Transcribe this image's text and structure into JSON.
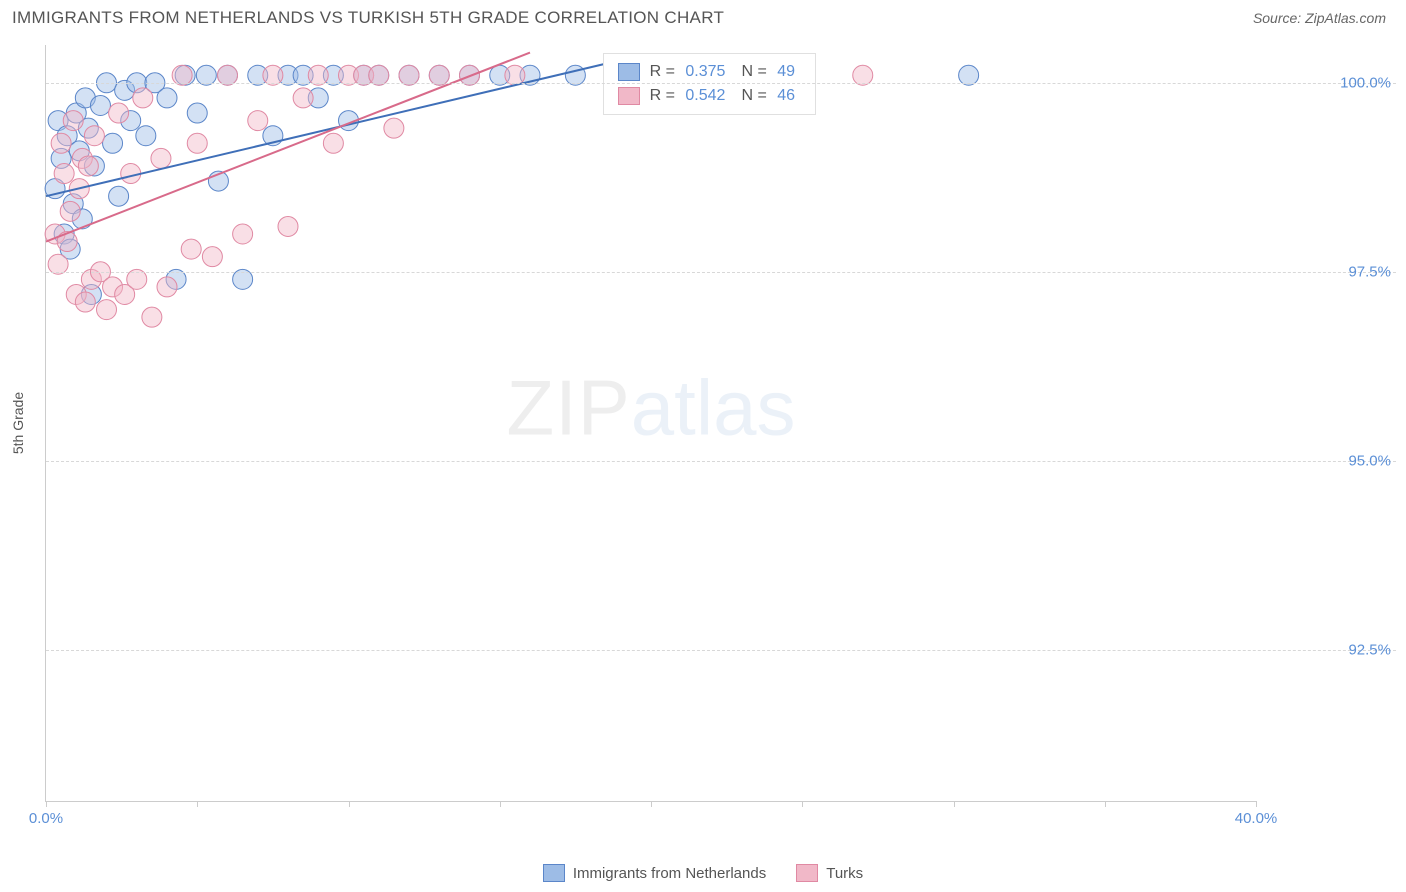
{
  "header": {
    "title": "IMMIGRANTS FROM NETHERLANDS VS TURKISH 5TH GRADE CORRELATION CHART",
    "source_label": "Source: ",
    "source_value": "ZipAtlas.com"
  },
  "chart": {
    "type": "scatter",
    "ylabel": "5th Grade",
    "xlim": [
      0.0,
      40.0
    ],
    "ylim": [
      90.5,
      100.5
    ],
    "xtick_positions": [
      0,
      5,
      10,
      15,
      20,
      25,
      30,
      35,
      40
    ],
    "xtick_labels": {
      "0": "0.0%",
      "40": "40.0%"
    },
    "ytick_positions": [
      92.5,
      95.0,
      97.5,
      100.0
    ],
    "ytick_labels": [
      "92.5%",
      "95.0%",
      "97.5%",
      "100.0%"
    ],
    "background_color": "#ffffff",
    "grid_color": "#d8d8d8",
    "axis_color": "#cccccc",
    "tick_label_color": "#5b8fd6",
    "label_color": "#555555",
    "label_fontsize": 14,
    "tick_fontsize": 15,
    "marker_radius": 10,
    "marker_opacity": 0.45,
    "line_width": 2,
    "series": [
      {
        "name": "Immigrants from Netherlands",
        "fill_color": "#9dbce6",
        "stroke_color": "#5b86c9",
        "line_color": "#3f6fb8",
        "r_label": "R = ",
        "r_value": "0.375",
        "n_label": "N = ",
        "n_value": "49",
        "trend": {
          "x1": 0.0,
          "y1": 98.5,
          "x2": 19.0,
          "y2": 100.3
        },
        "points": [
          {
            "x": 0.3,
            "y": 98.6
          },
          {
            "x": 0.4,
            "y": 99.5
          },
          {
            "x": 0.5,
            "y": 99.0
          },
          {
            "x": 0.6,
            "y": 98.0
          },
          {
            "x": 0.7,
            "y": 99.3
          },
          {
            "x": 0.8,
            "y": 97.8
          },
          {
            "x": 0.9,
            "y": 98.4
          },
          {
            "x": 1.0,
            "y": 99.6
          },
          {
            "x": 1.1,
            "y": 99.1
          },
          {
            "x": 1.2,
            "y": 98.2
          },
          {
            "x": 1.3,
            "y": 99.8
          },
          {
            "x": 1.4,
            "y": 99.4
          },
          {
            "x": 1.5,
            "y": 97.2
          },
          {
            "x": 1.6,
            "y": 98.9
          },
          {
            "x": 1.8,
            "y": 99.7
          },
          {
            "x": 2.0,
            "y": 100.0
          },
          {
            "x": 2.2,
            "y": 99.2
          },
          {
            "x": 2.4,
            "y": 98.5
          },
          {
            "x": 2.6,
            "y": 99.9
          },
          {
            "x": 2.8,
            "y": 99.5
          },
          {
            "x": 3.0,
            "y": 100.0
          },
          {
            "x": 3.3,
            "y": 99.3
          },
          {
            "x": 3.6,
            "y": 100.0
          },
          {
            "x": 4.0,
            "y": 99.8
          },
          {
            "x": 4.3,
            "y": 97.4
          },
          {
            "x": 4.6,
            "y": 100.1
          },
          {
            "x": 5.0,
            "y": 99.6
          },
          {
            "x": 5.3,
            "y": 100.1
          },
          {
            "x": 5.7,
            "y": 98.7
          },
          {
            "x": 6.0,
            "y": 100.1
          },
          {
            "x": 6.5,
            "y": 97.4
          },
          {
            "x": 7.0,
            "y": 100.1
          },
          {
            "x": 7.5,
            "y": 99.3
          },
          {
            "x": 8.0,
            "y": 100.1
          },
          {
            "x": 8.5,
            "y": 100.1
          },
          {
            "x": 9.0,
            "y": 99.8
          },
          {
            "x": 9.5,
            "y": 100.1
          },
          {
            "x": 10.0,
            "y": 99.5
          },
          {
            "x": 10.5,
            "y": 100.1
          },
          {
            "x": 11.0,
            "y": 100.1
          },
          {
            "x": 12.0,
            "y": 100.1
          },
          {
            "x": 13.0,
            "y": 100.1
          },
          {
            "x": 14.0,
            "y": 100.1
          },
          {
            "x": 15.0,
            "y": 100.1
          },
          {
            "x": 16.0,
            "y": 100.1
          },
          {
            "x": 17.5,
            "y": 100.1
          },
          {
            "x": 20.0,
            "y": 100.1
          },
          {
            "x": 23.0,
            "y": 100.1
          },
          {
            "x": 30.5,
            "y": 100.1
          }
        ]
      },
      {
        "name": "Turks",
        "fill_color": "#f1b8c8",
        "stroke_color": "#e089a3",
        "line_color": "#d86a8a",
        "r_label": "R = ",
        "r_value": "0.542",
        "n_label": "N = ",
        "n_value": "46",
        "trend": {
          "x1": 0.0,
          "y1": 97.9,
          "x2": 16.0,
          "y2": 100.4
        },
        "points": [
          {
            "x": 0.3,
            "y": 98.0
          },
          {
            "x": 0.4,
            "y": 97.6
          },
          {
            "x": 0.5,
            "y": 99.2
          },
          {
            "x": 0.6,
            "y": 98.8
          },
          {
            "x": 0.7,
            "y": 97.9
          },
          {
            "x": 0.8,
            "y": 98.3
          },
          {
            "x": 0.9,
            "y": 99.5
          },
          {
            "x": 1.0,
            "y": 97.2
          },
          {
            "x": 1.1,
            "y": 98.6
          },
          {
            "x": 1.2,
            "y": 99.0
          },
          {
            "x": 1.3,
            "y": 97.1
          },
          {
            "x": 1.4,
            "y": 98.9
          },
          {
            "x": 1.5,
            "y": 97.4
          },
          {
            "x": 1.6,
            "y": 99.3
          },
          {
            "x": 1.8,
            "y": 97.5
          },
          {
            "x": 2.0,
            "y": 97.0
          },
          {
            "x": 2.2,
            "y": 97.3
          },
          {
            "x": 2.4,
            "y": 99.6
          },
          {
            "x": 2.6,
            "y": 97.2
          },
          {
            "x": 2.8,
            "y": 98.8
          },
          {
            "x": 3.0,
            "y": 97.4
          },
          {
            "x": 3.2,
            "y": 99.8
          },
          {
            "x": 3.5,
            "y": 96.9
          },
          {
            "x": 3.8,
            "y": 99.0
          },
          {
            "x": 4.0,
            "y": 97.3
          },
          {
            "x": 4.5,
            "y": 100.1
          },
          {
            "x": 4.8,
            "y": 97.8
          },
          {
            "x": 5.0,
            "y": 99.2
          },
          {
            "x": 5.5,
            "y": 97.7
          },
          {
            "x": 6.0,
            "y": 100.1
          },
          {
            "x": 6.5,
            "y": 98.0
          },
          {
            "x": 7.0,
            "y": 99.5
          },
          {
            "x": 7.5,
            "y": 100.1
          },
          {
            "x": 8.0,
            "y": 98.1
          },
          {
            "x": 8.5,
            "y": 99.8
          },
          {
            "x": 9.0,
            "y": 100.1
          },
          {
            "x": 9.5,
            "y": 99.2
          },
          {
            "x": 10.0,
            "y": 100.1
          },
          {
            "x": 10.5,
            "y": 100.1
          },
          {
            "x": 11.0,
            "y": 100.1
          },
          {
            "x": 11.5,
            "y": 99.4
          },
          {
            "x": 12.0,
            "y": 100.1
          },
          {
            "x": 13.0,
            "y": 100.1
          },
          {
            "x": 14.0,
            "y": 100.1
          },
          {
            "x": 15.5,
            "y": 100.1
          },
          {
            "x": 27.0,
            "y": 100.1
          }
        ]
      }
    ],
    "stats_box": {
      "left_pct": 46,
      "top_pct": 1
    }
  },
  "bottom_legend": {
    "items": [
      {
        "label": "Immigrants from Netherlands",
        "fill": "#9dbce6",
        "stroke": "#5b86c9"
      },
      {
        "label": "Turks",
        "fill": "#f1b8c8",
        "stroke": "#e089a3"
      }
    ]
  },
  "watermark": {
    "zip": "ZIP",
    "atlas": "atlas"
  }
}
